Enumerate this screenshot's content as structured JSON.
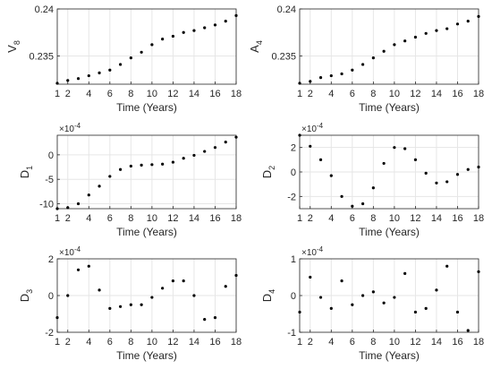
{
  "figure": {
    "colors": {
      "background": "#ffffff",
      "axes": "#262626",
      "grid": "#e6e6e6",
      "marker": "#000000"
    }
  },
  "chart_data": [
    {
      "type": "scatter",
      "xlabel": "Time (Years)",
      "ylabel": "V",
      "ylabel_sub": "8",
      "exponent": "",
      "xlim": [
        1,
        18
      ],
      "ylim": [
        0.232,
        0.24
      ],
      "xticks": [
        1,
        2,
        4,
        6,
        8,
        10,
        12,
        14,
        16,
        18
      ],
      "xtick_labels": [
        "1",
        "2",
        "4",
        "6",
        "8",
        "10",
        "12",
        "14",
        "16",
        "18"
      ],
      "yticks": [
        0.235,
        0.24
      ],
      "ytick_labels": [
        "0.235",
        "0.24"
      ],
      "grid": true,
      "x": [
        1,
        2,
        3,
        4,
        5,
        6,
        7,
        8,
        9,
        10,
        11,
        12,
        13,
        14,
        15,
        16,
        17,
        18
      ],
      "y": [
        0.2321,
        0.2324,
        0.2326,
        0.2329,
        0.2332,
        0.2335,
        0.2341,
        0.2348,
        0.2354,
        0.2362,
        0.2368,
        0.2371,
        0.2375,
        0.2377,
        0.238,
        0.2383,
        0.2387,
        0.2393
      ]
    },
    {
      "type": "scatter",
      "xlabel": "Time (Years)",
      "ylabel": "A",
      "ylabel_sub": "4",
      "exponent": "",
      "xlim": [
        1,
        18
      ],
      "ylim": [
        0.232,
        0.24
      ],
      "xticks": [
        1,
        2,
        4,
        6,
        8,
        10,
        12,
        14,
        16,
        18
      ],
      "xtick_labels": [
        "1",
        "2",
        "4",
        "6",
        "8",
        "10",
        "12",
        "14",
        "16",
        "18"
      ],
      "yticks": [
        0.235,
        0.24
      ],
      "ytick_labels": [
        "0.235",
        "0.24"
      ],
      "grid": true,
      "x": [
        1,
        2,
        3,
        4,
        5,
        6,
        7,
        8,
        9,
        10,
        11,
        12,
        13,
        14,
        15,
        16,
        17,
        18
      ],
      "y": [
        0.2321,
        0.2323,
        0.2327,
        0.2329,
        0.2331,
        0.2335,
        0.2341,
        0.2348,
        0.2355,
        0.2362,
        0.2366,
        0.237,
        0.2374,
        0.2377,
        0.2379,
        0.2384,
        0.2387,
        0.2392
      ]
    },
    {
      "type": "scatter",
      "xlabel": "Time (Years)",
      "ylabel": "D",
      "ylabel_sub": "1",
      "exponent": "-4",
      "xlim": [
        1,
        18
      ],
      "ylim": [
        -11,
        4
      ],
      "xticks": [
        1,
        2,
        4,
        6,
        8,
        10,
        12,
        14,
        16,
        18
      ],
      "xtick_labels": [
        "1",
        "2",
        "4",
        "6",
        "8",
        "10",
        "12",
        "14",
        "16",
        "18"
      ],
      "yticks": [
        -10,
        -5,
        0
      ],
      "ytick_labels": [
        "-10",
        "-5",
        "0"
      ],
      "grid": true,
      "x": [
        1,
        2,
        3,
        4,
        5,
        6,
        7,
        8,
        9,
        10,
        11,
        12,
        13,
        14,
        15,
        16,
        17,
        18
      ],
      "y": [
        -11,
        -10.8,
        -10,
        -8.2,
        -6.4,
        -4.4,
        -3,
        -2.3,
        -2.1,
        -2,
        -1.9,
        -1.5,
        -0.7,
        -0.1,
        0.7,
        1.5,
        2.6,
        3.6
      ]
    },
    {
      "type": "scatter",
      "xlabel": "Time (Years)",
      "ylabel": "D",
      "ylabel_sub": "2",
      "exponent": "-4",
      "xlim": [
        1,
        18
      ],
      "ylim": [
        -3,
        3
      ],
      "xticks": [
        1,
        2,
        4,
        6,
        8,
        10,
        12,
        14,
        16,
        18
      ],
      "xtick_labels": [
        "1",
        "2",
        "4",
        "6",
        "8",
        "10",
        "12",
        "14",
        "16",
        "18"
      ],
      "yticks": [
        -2,
        0,
        2
      ],
      "ytick_labels": [
        "-2",
        "0",
        "2"
      ],
      "grid": true,
      "x": [
        1,
        2,
        3,
        4,
        5,
        6,
        7,
        8,
        9,
        10,
        11,
        12,
        13,
        14,
        15,
        16,
        17,
        18
      ],
      "y": [
        3,
        2.1,
        1,
        -0.3,
        -2,
        -2.8,
        -2.6,
        -1.3,
        0.7,
        2,
        1.9,
        1,
        -0.1,
        -0.9,
        -0.8,
        -0.2,
        0.2,
        0.4
      ]
    },
    {
      "type": "scatter",
      "xlabel": "Time (Years)",
      "ylabel": "D",
      "ylabel_sub": "3",
      "exponent": "-4",
      "xlim": [
        1,
        18
      ],
      "ylim": [
        -2,
        2
      ],
      "xticks": [
        1,
        2,
        4,
        6,
        8,
        10,
        12,
        14,
        16,
        18
      ],
      "xtick_labels": [
        "1",
        "2",
        "4",
        "6",
        "8",
        "10",
        "12",
        "14",
        "16",
        "18"
      ],
      "yticks": [
        -2,
        0,
        2
      ],
      "ytick_labels": [
        "-2",
        "0",
        "2"
      ],
      "grid": true,
      "x": [
        1,
        2,
        3,
        4,
        5,
        6,
        7,
        8,
        9,
        10,
        11,
        12,
        13,
        14,
        15,
        16,
        17,
        18
      ],
      "y": [
        -1.2,
        0,
        1.4,
        1.6,
        0.3,
        -0.7,
        -0.6,
        -0.5,
        -0.5,
        -0.1,
        0.4,
        0.8,
        0.8,
        0,
        -1.3,
        -1.2,
        0.5,
        1.1
      ]
    },
    {
      "type": "scatter",
      "xlabel": "Time (Years)",
      "ylabel": "D",
      "ylabel_sub": "4",
      "exponent": "-4",
      "xlim": [
        1,
        18
      ],
      "ylim": [
        -1,
        1
      ],
      "xticks": [
        1,
        2,
        4,
        6,
        8,
        10,
        12,
        14,
        16,
        18
      ],
      "xtick_labels": [
        "1",
        "2",
        "4",
        "6",
        "8",
        "10",
        "12",
        "14",
        "16",
        "18"
      ],
      "yticks": [
        -1,
        0,
        1
      ],
      "ytick_labels": [
        "-1",
        "0",
        "1"
      ],
      "grid": true,
      "x": [
        1,
        2,
        3,
        4,
        5,
        6,
        7,
        8,
        9,
        10,
        11,
        12,
        13,
        14,
        15,
        16,
        17,
        18
      ],
      "y": [
        -0.45,
        0.5,
        -0.05,
        -0.35,
        0.4,
        -0.25,
        0,
        0.1,
        -0.2,
        -0.05,
        0.6,
        -0.45,
        -0.35,
        0.15,
        0.8,
        -0.45,
        -0.95,
        0.65
      ]
    }
  ]
}
